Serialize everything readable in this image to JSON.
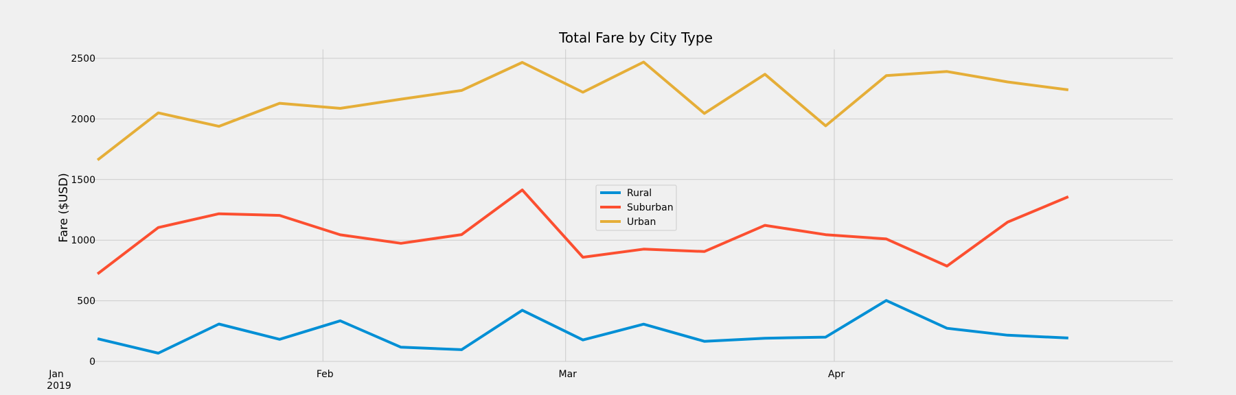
{
  "chart_data": {
    "type": "line",
    "title": "Total Fare by City Type",
    "xlabel": "",
    "ylabel": "Fare ($USD)",
    "ylim": [
      0,
      2500
    ],
    "y_ticks": [
      "0",
      "500",
      "1000",
      "1500",
      "2000",
      "2500"
    ],
    "x_ticks": [
      {
        "date": "2019-01-01",
        "label": "Jan",
        "sublabel": "2019"
      },
      {
        "date": "2019-02-01",
        "label": "Feb",
        "sublabel": ""
      },
      {
        "date": "2019-03-01",
        "label": "Mar",
        "sublabel": ""
      },
      {
        "date": "2019-04-01",
        "label": "Apr",
        "sublabel": ""
      }
    ],
    "x": [
      "2019-01-06",
      "2019-01-13",
      "2019-01-20",
      "2019-01-27",
      "2019-02-03",
      "2019-02-10",
      "2019-02-17",
      "2019-02-24",
      "2019-03-03",
      "2019-03-10",
      "2019-03-17",
      "2019-03-24",
      "2019-03-31",
      "2019-04-07",
      "2019-04-14",
      "2019-04-21",
      "2019-04-28"
    ],
    "series": [
      {
        "name": "Rural",
        "color": "#008fd5",
        "values": [
          187,
          68,
          308,
          182,
          335,
          117,
          97,
          422,
          177,
          307,
          166,
          191,
          200,
          502,
          273,
          216,
          193
        ]
      },
      {
        "name": "Suburban",
        "color": "#fc4f30",
        "values": [
          722,
          1104,
          1218,
          1204,
          1044,
          974,
          1046,
          1414,
          859,
          926,
          906,
          1122,
          1045,
          1010,
          786,
          1149,
          1358
        ]
      },
      {
        "name": "Urban",
        "color": "#e5ae38",
        "values": [
          1661,
          2050,
          1939,
          2129,
          2087,
          2163,
          2235,
          2466,
          2220,
          2469,
          2045,
          2368,
          1943,
          2357,
          2391,
          2305,
          2240
        ]
      }
    ],
    "grid": true,
    "legend_position": "center"
  }
}
